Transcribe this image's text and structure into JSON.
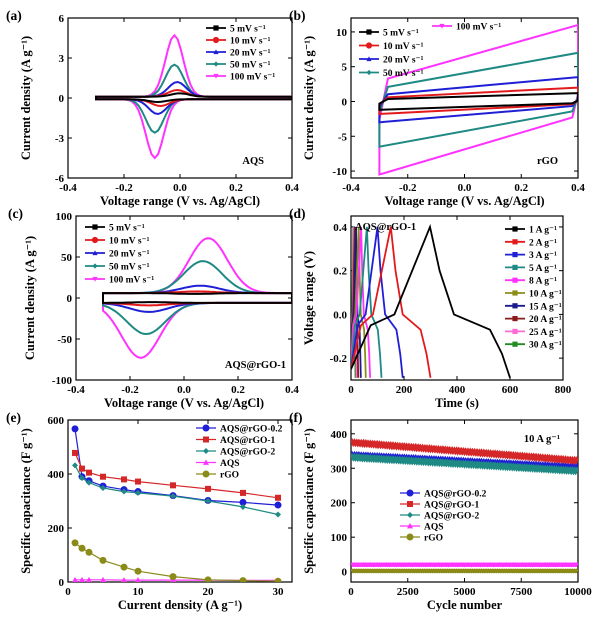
{
  "chart_data": [
    {
      "id": "a",
      "type": "line",
      "panel_label": "(a)",
      "annotation": "AQS",
      "xlabel": "Voltage range (V vs. Ag/AgCl)",
      "ylabel": "Current density (A g⁻¹)",
      "xlim": [
        -0.4,
        0.4
      ],
      "ylim": [
        -6,
        6
      ],
      "xticks": [
        "-0.4",
        "-0.2",
        "0.0",
        "0.2",
        "0.4"
      ],
      "yticks": [
        "-6",
        "-3",
        "0",
        "3",
        "6"
      ],
      "series": [
        {
          "name": "5 mV s⁻¹",
          "color": "#000000",
          "marker": "square",
          "peak_ox": [
            0.0,
            0.35
          ],
          "peak_red": [
            -0.08,
            -0.3
          ]
        },
        {
          "name": "10 mV s⁻¹",
          "color": "#e31a1c",
          "marker": "circle",
          "peak_ox": [
            -0.01,
            0.6
          ],
          "peak_red": [
            -0.07,
            -0.6
          ]
        },
        {
          "name": "20 mV s⁻¹",
          "color": "#1f1fd6",
          "marker": "triangle",
          "peak_ox": [
            -0.01,
            1.2
          ],
          "peak_red": [
            -0.08,
            -1.2
          ]
        },
        {
          "name": "50 mV s⁻¹",
          "color": "#1f8a84",
          "marker": "diamond",
          "peak_ox": [
            -0.02,
            2.5
          ],
          "peak_red": [
            -0.09,
            -2.6
          ]
        },
        {
          "name": "100 mV s⁻¹",
          "color": "#ff33ff",
          "marker": "triangle-down",
          "peak_ox": [
            -0.02,
            4.7
          ],
          "peak_red": [
            -0.09,
            -4.5
          ]
        }
      ]
    },
    {
      "id": "b",
      "type": "line",
      "panel_label": "(b)",
      "annotation": "rGO",
      "xlabel": "Voltage range (V vs. Ag/AgCl)",
      "ylabel": "Current density (A g⁻¹)",
      "xlim": [
        -0.4,
        0.4
      ],
      "ylim": [
        -11,
        12
      ],
      "xticks": [
        "-0.4",
        "-0.2",
        "0.0",
        "0.2",
        "0.4"
      ],
      "yticks": [
        "-10",
        "-5",
        "0",
        "5",
        "10"
      ],
      "series": [
        {
          "name": "5 mV s⁻¹",
          "color": "#000000",
          "marker": "square",
          "v_at_min": -1.2,
          "v_at_max": 1.2
        },
        {
          "name": "10 mV s⁻¹",
          "color": "#e31a1c",
          "marker": "circle",
          "v_at_min": -1.8,
          "v_at_max": 2.0
        },
        {
          "name": "20 mV s⁻¹",
          "color": "#1f1fd6",
          "marker": "triangle",
          "v_at_min": -3.0,
          "v_at_max": 3.5
        },
        {
          "name": "50 mV s⁻¹",
          "color": "#1f8a84",
          "marker": "diamond",
          "v_at_min": -6.5,
          "v_at_max": 7.0
        },
        {
          "name": "100 mV s⁻¹",
          "color": "#ff33ff",
          "marker": "triangle-down",
          "v_at_min": -10.5,
          "v_at_max": 11.0
        }
      ]
    },
    {
      "id": "c",
      "type": "line",
      "panel_label": "(c)",
      "annotation": "AQS@rGO-1",
      "xlabel": "Voltage range (V vs. Ag/AgCl)",
      "ylabel": "Current density (A g⁻¹)",
      "xlim": [
        -0.4,
        0.4
      ],
      "ylim": [
        -100,
        100
      ],
      "xticks": [
        "-0.4",
        "-0.2",
        "0.0",
        "0.2",
        "0.4"
      ],
      "yticks": [
        "-100",
        "-50",
        "0",
        "50",
        "100"
      ],
      "series": [
        {
          "name": "5 mV s⁻¹",
          "color": "#000000",
          "marker": "square",
          "peak_ox": [
            0.04,
            5
          ],
          "peak_red": [
            -0.12,
            -5
          ]
        },
        {
          "name": "10 mV s⁻¹",
          "color": "#e31a1c",
          "marker": "circle",
          "peak_ox": [
            0.05,
            8
          ],
          "peak_red": [
            -0.13,
            -9
          ]
        },
        {
          "name": "20 mV s⁻¹",
          "color": "#1f1fd6",
          "marker": "triangle",
          "peak_ox": [
            0.06,
            15
          ],
          "peak_red": [
            -0.13,
            -17
          ]
        },
        {
          "name": "50 mV s⁻¹",
          "color": "#1f8a84",
          "marker": "diamond",
          "peak_ox": [
            0.07,
            45
          ],
          "peak_red": [
            -0.14,
            -44
          ]
        },
        {
          "name": "100 mV s⁻¹",
          "color": "#ff33ff",
          "marker": "triangle-down",
          "peak_ox": [
            0.09,
            73
          ],
          "peak_red": [
            -0.16,
            -73
          ]
        }
      ]
    },
    {
      "id": "d",
      "type": "line",
      "panel_label": "(d)",
      "annotation": "AQS@rGO-1",
      "xlabel": "Time (s)",
      "ylabel": "Voltage range (V)",
      "xlim": [
        0,
        800
      ],
      "ylim": [
        -0.3,
        0.45
      ],
      "xticks": [
        "0",
        "200",
        "400",
        "600",
        "800"
      ],
      "yticks": [
        "-0.2",
        "0.0",
        "0.2",
        "0.4"
      ],
      "series": [
        {
          "name": "1 A g⁻¹",
          "color": "#000000",
          "charge_end_s": 298,
          "discharge_end_s": 600
        },
        {
          "name": "2 A g⁻¹",
          "color": "#e31a1c",
          "charge_end_s": 150,
          "discharge_end_s": 300
        },
        {
          "name": "3 A g⁻¹",
          "color": "#1f1fd6",
          "charge_end_s": 100,
          "discharge_end_s": 195
        },
        {
          "name": "5 A g⁻¹",
          "color": "#1f8a84",
          "charge_end_s": 60,
          "discharge_end_s": 115
        },
        {
          "name": "8 A g⁻¹",
          "color": "#ff33ff",
          "charge_end_s": 38,
          "discharge_end_s": 72
        },
        {
          "name": "10 A g⁻¹",
          "color": "#8b8b1a",
          "charge_end_s": 29,
          "discharge_end_s": 56
        },
        {
          "name": "15 A g⁻¹",
          "color": "#1a1a8b",
          "charge_end_s": 19,
          "discharge_end_s": 37
        },
        {
          "name": "20 A g⁻¹",
          "color": "#8b1a1a",
          "charge_end_s": 14,
          "discharge_end_s": 27
        },
        {
          "name": "25 A g⁻¹",
          "color": "#ff6ad5",
          "charge_end_s": 11,
          "discharge_end_s": 21
        },
        {
          "name": "30 A g⁻¹",
          "color": "#228b22",
          "charge_end_s": 9,
          "discharge_end_s": 17
        }
      ]
    },
    {
      "id": "e",
      "type": "scatter",
      "panel_label": "(e)",
      "xlabel": "Current density (A g⁻¹)",
      "ylabel": "Specific capacitance (F g⁻¹)",
      "xlim": [
        0,
        32
      ],
      "ylim": [
        0,
        600
      ],
      "xticks": [
        "0",
        "10",
        "20",
        "30"
      ],
      "yticks": [
        "0",
        "200",
        "400",
        "600"
      ],
      "x": [
        1,
        2,
        3,
        5,
        8,
        10,
        15,
        20,
        25,
        30
      ],
      "series": [
        {
          "name": "AQS@rGO-0.2",
          "color": "#1f1fd6",
          "values": [
            567,
            390,
            375,
            355,
            342,
            335,
            320,
            302,
            295,
            285
          ]
        },
        {
          "name": "AQS@rGO-1",
          "color": "#d62728",
          "values": [
            478,
            420,
            405,
            390,
            380,
            372,
            358,
            345,
            330,
            312
          ]
        },
        {
          "name": "AQS@rGO-2",
          "color": "#1f8a84",
          "values": [
            432,
            385,
            368,
            348,
            335,
            330,
            318,
            300,
            278,
            250
          ]
        },
        {
          "name": "AQS",
          "color": "#ff33ff",
          "values": [
            8,
            8,
            8,
            8,
            7,
            7,
            7,
            7,
            6,
            6
          ]
        },
        {
          "name": "rGO",
          "color": "#8b8b1a",
          "values": [
            145,
            125,
            110,
            80,
            55,
            40,
            20,
            8,
            5,
            3
          ]
        }
      ]
    },
    {
      "id": "f",
      "type": "scatter",
      "panel_label": "(f)",
      "annotation": "10 A g⁻¹",
      "xlabel": "Cycle number",
      "ylabel": "Specific capacitance (F g⁻¹)",
      "xlim": [
        0,
        10000
      ],
      "ylim": [
        -30,
        440
      ],
      "xticks": [
        "0",
        "2500",
        "5000",
        "7500",
        "10000"
      ],
      "yticks": [
        "0",
        "100",
        "200",
        "300",
        "400"
      ],
      "series": [
        {
          "name": "AQS@rGO-0.2",
          "color": "#1f1fd6",
          "start": 338,
          "end": 302
        },
        {
          "name": "AQS@rGO-1",
          "color": "#d62728",
          "start": 375,
          "end": 322
        },
        {
          "name": "AQS@rGO-2",
          "color": "#1f8a84",
          "start": 332,
          "end": 292
        },
        {
          "name": "AQS",
          "color": "#ff33ff",
          "start": 20,
          "end": 20
        },
        {
          "name": "rGO",
          "color": "#8b8b1a",
          "start": 2,
          "end": 2
        }
      ]
    }
  ]
}
